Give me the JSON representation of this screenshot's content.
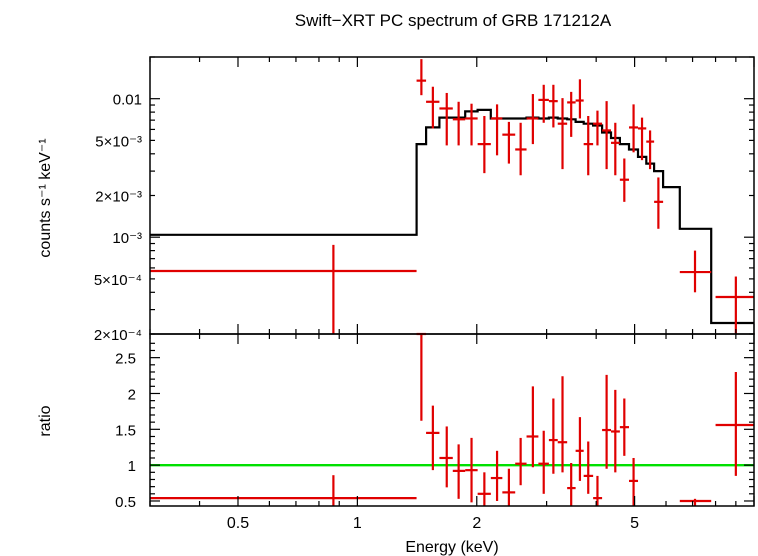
{
  "title": "Swift−XRT PC spectrum of GRB 171212A",
  "colors": {
    "data": "#e00000",
    "model": "#000000",
    "unity": "#00e000",
    "axes": "#000000"
  },
  "chart_data": [
    {
      "type": "scatter",
      "panel": "spectrum",
      "xlabel": "",
      "ylabel": "counts s⁻¹ keV⁻¹",
      "xscale": "log",
      "yscale": "log",
      "xlim": [
        0.3,
        10.0
      ],
      "ylim": [
        0.0002,
        0.02
      ],
      "ytick_labels": [
        {
          "v": 0.01,
          "label": "0.01"
        },
        {
          "v": 0.005,
          "label": "5×10⁻³"
        },
        {
          "v": 0.002,
          "label": "2×10⁻³"
        },
        {
          "v": 0.001,
          "label": "10⁻³"
        },
        {
          "v": 0.0005,
          "label": "5×10⁻⁴"
        },
        {
          "v": 0.0002,
          "label": "2×10⁻⁴"
        }
      ],
      "series": [
        {
          "kind": "data",
          "points": [
            {
              "x0": 0.3,
              "x1": 1.41,
              "x": 0.87,
              "y": 0.00057,
              "ylo": 0.00019,
              "yhi": 0.00088
            },
            {
              "x0": 1.41,
              "x1": 1.49,
              "x": 1.45,
              "y": 0.0135,
              "ylo": 0.0106,
              "yhi": 0.0193
            },
            {
              "x0": 1.49,
              "x1": 1.61,
              "x": 1.55,
              "y": 0.0095,
              "ylo": 0.0061,
              "yhi": 0.0122
            },
            {
              "x0": 1.61,
              "x1": 1.74,
              "x": 1.68,
              "y": 0.0085,
              "ylo": 0.0046,
              "yhi": 0.011
            },
            {
              "x0": 1.74,
              "x1": 1.87,
              "x": 1.8,
              "y": 0.0071,
              "ylo": 0.0046,
              "yhi": 0.0095
            },
            {
              "x0": 1.87,
              "x1": 2.01,
              "x": 1.94,
              "y": 0.0072,
              "ylo": 0.0046,
              "yhi": 0.0092
            },
            {
              "x0": 2.01,
              "x1": 2.17,
              "x": 2.09,
              "y": 0.0047,
              "ylo": 0.0029,
              "yhi": 0.0075
            },
            {
              "x0": 2.17,
              "x1": 2.32,
              "x": 2.25,
              "y": 0.0072,
              "ylo": 0.0039,
              "yhi": 0.0091
            },
            {
              "x0": 2.32,
              "x1": 2.5,
              "x": 2.41,
              "y": 0.0055,
              "ylo": 0.0034,
              "yhi": 0.0068
            },
            {
              "x0": 2.5,
              "x1": 2.67,
              "x": 2.58,
              "y": 0.0043,
              "ylo": 0.0028,
              "yhi": 0.0067
            },
            {
              "x0": 2.67,
              "x1": 2.86,
              "x": 2.77,
              "y": 0.0072,
              "ylo": 0.0047,
              "yhi": 0.0108
            },
            {
              "x0": 2.86,
              "x1": 3.04,
              "x": 2.95,
              "y": 0.0098,
              "ylo": 0.0067,
              "yhi": 0.0126
            },
            {
              "x0": 3.04,
              "x1": 3.2,
              "x": 3.12,
              "y": 0.0096,
              "ylo": 0.0062,
              "yhi": 0.0126
            },
            {
              "x0": 3.2,
              "x1": 3.38,
              "x": 3.29,
              "y": 0.0066,
              "ylo": 0.0031,
              "yhi": 0.0101
            },
            {
              "x0": 3.38,
              "x1": 3.55,
              "x": 3.46,
              "y": 0.0094,
              "ylo": 0.0053,
              "yhi": 0.0112
            },
            {
              "x0": 3.55,
              "x1": 3.72,
              "x": 3.64,
              "y": 0.0097,
              "ylo": 0.0072,
              "yhi": 0.0138
            },
            {
              "x0": 3.72,
              "x1": 3.93,
              "x": 3.82,
              "y": 0.0047,
              "ylo": 0.0028,
              "yhi": 0.0075
            },
            {
              "x0": 3.93,
              "x1": 4.14,
              "x": 4.03,
              "y": 0.0066,
              "ylo": 0.0046,
              "yhi": 0.0082
            },
            {
              "x0": 4.14,
              "x1": 4.36,
              "x": 4.25,
              "y": 0.0059,
              "ylo": 0.0031,
              "yhi": 0.0096
            },
            {
              "x0": 4.36,
              "x1": 4.59,
              "x": 4.47,
              "y": 0.0048,
              "ylo": 0.0028,
              "yhi": 0.0067
            },
            {
              "x0": 4.59,
              "x1": 4.84,
              "x": 4.71,
              "y": 0.0026,
              "ylo": 0.0018,
              "yhi": 0.0037
            },
            {
              "x0": 4.84,
              "x1": 5.1,
              "x": 4.97,
              "y": 0.0062,
              "ylo": 0.0041,
              "yhi": 0.0091
            },
            {
              "x0": 5.1,
              "x1": 5.35,
              "x": 5.22,
              "y": 0.0061,
              "ylo": 0.0036,
              "yhi": 0.0073
            },
            {
              "x0": 5.35,
              "x1": 5.6,
              "x": 5.47,
              "y": 0.0049,
              "ylo": 0.0031,
              "yhi": 0.0059
            },
            {
              "x0": 5.6,
              "x1": 5.9,
              "x": 5.74,
              "y": 0.0018,
              "ylo": 0.00115,
              "yhi": 0.0027
            },
            {
              "x0": 6.5,
              "x1": 7.8,
              "x": 7.1,
              "y": 0.00056,
              "ylo": 0.0004,
              "yhi": 0.0008
            },
            {
              "x0": 8.0,
              "x1": 10.0,
              "x": 9.0,
              "y": 0.00037,
              "ylo": 0.0002,
              "yhi": 0.00052
            }
          ]
        },
        {
          "kind": "model",
          "steps": [
            {
              "x0": 0.3,
              "x1": 1.41,
              "y": 0.00104
            },
            {
              "x0": 1.41,
              "x1": 1.49,
              "y": 0.0047
            },
            {
              "x0": 1.49,
              "x1": 1.61,
              "y": 0.0062
            },
            {
              "x0": 1.61,
              "x1": 1.74,
              "y": 0.0073
            },
            {
              "x0": 1.74,
              "x1": 1.87,
              "y": 0.0073
            },
            {
              "x0": 1.87,
              "x1": 2.01,
              "y": 0.0081
            },
            {
              "x0": 2.01,
              "x1": 2.17,
              "y": 0.0083
            },
            {
              "x0": 2.17,
              "x1": 2.32,
              "y": 0.0072
            },
            {
              "x0": 2.32,
              "x1": 2.5,
              "y": 0.0072
            },
            {
              "x0": 2.5,
              "x1": 2.67,
              "y": 0.0072
            },
            {
              "x0": 2.67,
              "x1": 2.86,
              "y": 0.0073
            },
            {
              "x0": 2.86,
              "x1": 3.04,
              "y": 0.0072
            },
            {
              "x0": 3.04,
              "x1": 3.2,
              "y": 0.0073
            },
            {
              "x0": 3.2,
              "x1": 3.38,
              "y": 0.0072
            },
            {
              "x0": 3.38,
              "x1": 3.55,
              "y": 0.0071
            },
            {
              "x0": 3.55,
              "x1": 3.72,
              "y": 0.0068
            },
            {
              "x0": 3.72,
              "x1": 3.93,
              "y": 0.0066
            },
            {
              "x0": 3.93,
              "x1": 4.14,
              "y": 0.0064
            },
            {
              "x0": 4.14,
              "x1": 4.36,
              "y": 0.0057
            },
            {
              "x0": 4.36,
              "x1": 4.59,
              "y": 0.0052
            },
            {
              "x0": 4.59,
              "x1": 4.84,
              "y": 0.0047
            },
            {
              "x0": 4.84,
              "x1": 5.1,
              "y": 0.0043
            },
            {
              "x0": 5.1,
              "x1": 5.35,
              "y": 0.0038
            },
            {
              "x0": 5.35,
              "x1": 5.6,
              "y": 0.0034
            },
            {
              "x0": 5.6,
              "x1": 5.9,
              "y": 0.003
            },
            {
              "x0": 5.9,
              "x1": 6.5,
              "y": 0.0023
            },
            {
              "x0": 6.5,
              "x1": 7.8,
              "y": 0.00115
            },
            {
              "x0": 7.8,
              "x1": 10.0,
              "y": 0.00024
            }
          ]
        }
      ]
    },
    {
      "type": "scatter",
      "panel": "ratio",
      "xlabel": "Energy (keV)",
      "ylabel": "ratio",
      "xscale": "log",
      "yscale": "linear",
      "xlim": [
        0.3,
        10.0
      ],
      "ylim": [
        0.43,
        2.83
      ],
      "xtick_labels": [
        {
          "v": 0.5,
          "label": "0.5"
        },
        {
          "v": 1,
          "label": "1"
        },
        {
          "v": 2,
          "label": "2"
        },
        {
          "v": 5,
          "label": "5"
        }
      ],
      "ytick_labels": [
        {
          "v": 0.5,
          "label": "0.5"
        },
        {
          "v": 1,
          "label": "1"
        },
        {
          "v": 1.5,
          "label": "1.5"
        },
        {
          "v": 2,
          "label": "2"
        },
        {
          "v": 2.5,
          "label": "2.5"
        }
      ],
      "reference_line": 1,
      "series": [
        {
          "kind": "data",
          "points": [
            {
              "x0": 0.3,
              "x1": 1.41,
              "x": 0.87,
              "y": 0.54,
              "ylo": 0.43,
              "yhi": 0.86
            },
            {
              "x0": 1.41,
              "x1": 1.49,
              "x": 1.45,
              "y": 2.83,
              "ylo": 1.62,
              "yhi": 2.83
            },
            {
              "x0": 1.49,
              "x1": 1.61,
              "x": 1.55,
              "y": 1.45,
              "ylo": 0.93,
              "yhi": 1.83
            },
            {
              "x0": 1.61,
              "x1": 1.74,
              "x": 1.68,
              "y": 1.1,
              "ylo": 0.69,
              "yhi": 1.54
            },
            {
              "x0": 1.74,
              "x1": 1.87,
              "x": 1.8,
              "y": 0.92,
              "ylo": 0.53,
              "yhi": 1.29
            },
            {
              "x0": 1.87,
              "x1": 2.01,
              "x": 1.94,
              "y": 0.93,
              "ylo": 0.48,
              "yhi": 1.38
            },
            {
              "x0": 2.01,
              "x1": 2.17,
              "x": 2.09,
              "y": 0.6,
              "ylo": 0.43,
              "yhi": 0.9
            },
            {
              "x0": 2.17,
              "x1": 2.32,
              "x": 2.25,
              "y": 0.82,
              "ylo": 0.5,
              "yhi": 1.2
            },
            {
              "x0": 2.32,
              "x1": 2.5,
              "x": 2.41,
              "y": 0.62,
              "ylo": 0.43,
              "yhi": 0.95
            },
            {
              "x0": 2.5,
              "x1": 2.67,
              "x": 2.58,
              "y": 1.02,
              "ylo": 0.72,
              "yhi": 1.38
            },
            {
              "x0": 2.67,
              "x1": 2.86,
              "x": 2.77,
              "y": 1.4,
              "ylo": 0.97,
              "yhi": 2.1
            },
            {
              "x0": 2.86,
              "x1": 3.04,
              "x": 2.95,
              "y": 1.02,
              "ylo": 0.6,
              "yhi": 1.48
            },
            {
              "x0": 3.04,
              "x1": 3.2,
              "x": 3.12,
              "y": 1.35,
              "ylo": 0.88,
              "yhi": 1.93
            },
            {
              "x0": 3.2,
              "x1": 3.38,
              "x": 3.29,
              "y": 1.32,
              "ylo": 0.9,
              "yhi": 2.24
            },
            {
              "x0": 3.38,
              "x1": 3.55,
              "x": 3.46,
              "y": 0.68,
              "ylo": 0.43,
              "yhi": 1.03
            },
            {
              "x0": 3.55,
              "x1": 3.72,
              "x": 3.64,
              "y": 1.2,
              "ylo": 0.78,
              "yhi": 1.67
            },
            {
              "x0": 3.72,
              "x1": 3.93,
              "x": 3.82,
              "y": 0.85,
              "ylo": 0.6,
              "yhi": 1.33
            },
            {
              "x0": 3.93,
              "x1": 4.14,
              "x": 4.03,
              "y": 0.54,
              "ylo": 0.43,
              "yhi": 0.85
            },
            {
              "x0": 4.14,
              "x1": 4.36,
              "x": 4.25,
              "y": 1.49,
              "ylo": 0.95,
              "yhi": 2.26
            },
            {
              "x0": 4.36,
              "x1": 4.59,
              "x": 4.47,
              "y": 1.47,
              "ylo": 0.9,
              "yhi": 2.05
            },
            {
              "x0": 4.59,
              "x1": 4.84,
              "x": 4.71,
              "y": 1.53,
              "ylo": 1.13,
              "yhi": 1.93
            },
            {
              "x0": 4.84,
              "x1": 5.1,
              "x": 4.97,
              "y": 0.78,
              "ylo": 0.43,
              "yhi": 1.1
            },
            {
              "x0": 6.5,
              "x1": 7.8,
              "x": 7.1,
              "y": 0.5,
              "ylo": 0.43,
              "yhi": 0.53
            },
            {
              "x0": 8.0,
              "x1": 10.0,
              "x": 9.0,
              "y": 1.56,
              "ylo": 0.85,
              "yhi": 2.3
            }
          ]
        }
      ]
    }
  ]
}
